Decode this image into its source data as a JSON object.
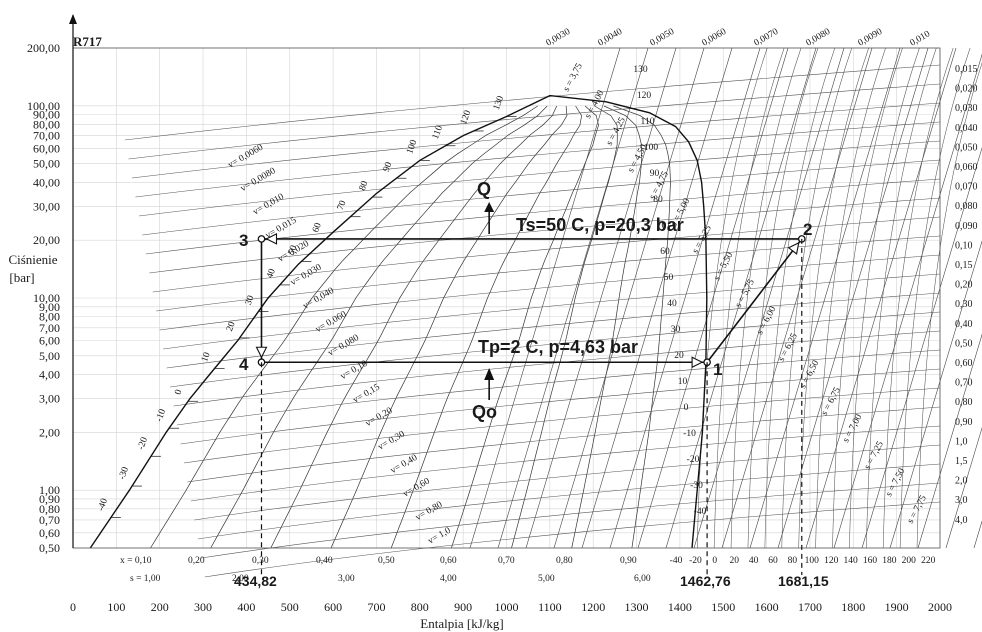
{
  "chart_data": {
    "type": "line",
    "title": "R717",
    "xlabel": "Entalpia [kJ/kg]",
    "ylabel": "Ciśnienie\n[bar]",
    "xlim": [
      0,
      2000
    ],
    "ylim": [
      0.5,
      200
    ],
    "yscale": "log",
    "x_ticks": [
      0,
      100,
      200,
      300,
      400,
      500,
      600,
      700,
      800,
      900,
      1000,
      1100,
      1200,
      1300,
      1400,
      1500,
      1600,
      1700,
      1800,
      1900,
      2000
    ],
    "y_ticks": [
      {
        "v": 200,
        "label": "200,00"
      },
      {
        "v": 100,
        "label": "100,00"
      },
      {
        "v": 90,
        "label": "90,00"
      },
      {
        "v": 80,
        "label": "80,00"
      },
      {
        "v": 70,
        "label": "70,00"
      },
      {
        "v": 60,
        "label": "60,00"
      },
      {
        "v": 50,
        "label": "50,00"
      },
      {
        "v": 40,
        "label": "40,00"
      },
      {
        "v": 30,
        "label": "30,00"
      },
      {
        "v": 20,
        "label": "20,00"
      },
      {
        "v": 10,
        "label": "10,00"
      },
      {
        "v": 9,
        "label": "9,00"
      },
      {
        "v": 8,
        "label": "8,00"
      },
      {
        "v": 7,
        "label": "7,00"
      },
      {
        "v": 6,
        "label": "6,00"
      },
      {
        "v": 5,
        "label": "5,00"
      },
      {
        "v": 4,
        "label": "4,00"
      },
      {
        "v": 3,
        "label": "3,00"
      },
      {
        "v": 2,
        "label": "2,00"
      },
      {
        "v": 1,
        "label": "1,00"
      },
      {
        "v": 0.9,
        "label": "0,90"
      },
      {
        "v": 0.8,
        "label": "0,80"
      },
      {
        "v": 0.7,
        "label": "0,70"
      },
      {
        "v": 0.6,
        "label": "0,60"
      },
      {
        "v": 0.5,
        "label": "0,50"
      }
    ],
    "saturation_dome": {
      "liquid": [
        [
          40,
          0.5
        ],
        [
          130,
          1.0
        ],
        [
          215,
          2.0
        ],
        [
          270,
          3.0
        ],
        [
          315,
          4.0
        ],
        [
          380,
          6.0
        ],
        [
          450,
          10
        ],
        [
          520,
          15
        ],
        [
          600,
          22
        ],
        [
          700,
          35
        ],
        [
          800,
          52
        ],
        [
          900,
          70
        ],
        [
          1000,
          88
        ],
        [
          1100,
          113
        ]
      ],
      "vapor": [
        [
          1100,
          113
        ],
        [
          1230,
          105
        ],
        [
          1330,
          92
        ],
        [
          1390,
          78
        ],
        [
          1420,
          65
        ],
        [
          1440,
          52
        ],
        [
          1450,
          40
        ],
        [
          1455,
          30
        ],
        [
          1460,
          20
        ],
        [
          1462,
          10
        ],
        [
          1460,
          4.63
        ],
        [
          1452,
          2.0
        ],
        [
          1440,
          1.0
        ],
        [
          1428,
          0.5
        ]
      ]
    },
    "quality_labels": [
      "x = 0,10",
      "0,20",
      "0,30",
      "0,40",
      "0,50",
      "0,60",
      "0,70",
      "0,80",
      "0,90"
    ],
    "entropy_labels": [
      "s = 1,00",
      "2,00",
      "3,00",
      "4,00",
      "5,00",
      "6,00"
    ],
    "liquid_temp_labels": [
      "-40",
      "-30",
      "-20",
      "-10",
      "0",
      "10",
      "20",
      "30",
      "40",
      "50",
      "60",
      "70",
      "80",
      "90",
      "100",
      "110",
      "120",
      "130"
    ],
    "vapor_temp_labels": [
      "-40",
      "-30",
      "-20",
      "-10",
      "0",
      "10",
      "20",
      "30",
      "40",
      "50",
      "60",
      "70",
      "80",
      "90",
      "100",
      "110",
      "120",
      "130"
    ],
    "bottom_temp_labels": [
      "-40",
      "-20",
      "0",
      "20",
      "40",
      "60",
      "80",
      "100",
      "120",
      "140",
      "160",
      "180",
      "200",
      "220"
    ],
    "specific_volume_labels_top": [
      "0,0030",
      "0,0040",
      "0,0050",
      "0,0060",
      "0,0070",
      "0,0080",
      "0,0090",
      "0,010"
    ],
    "specific_volume_labels_right": [
      "0,015",
      "0,020",
      "0,030",
      "0,040",
      "0,050",
      "0,060",
      "0,070",
      "0,080",
      "0,090",
      "0,10",
      "0,15",
      "0,20",
      "0,30",
      "0,40",
      "0,50",
      "0,60",
      "0,70",
      "0,80",
      "0,90",
      "1,0",
      "1,5",
      "2,0",
      "3,0",
      "4,0"
    ],
    "specific_volume_labels_inner": [
      "v= 0,0060",
      "v= 0,0080",
      "v= 0,010",
      "v= 0,015",
      "v= 0,020",
      "v= 0,030",
      "v= 0,040",
      "v= 0,060",
      "v= 0,080",
      "v= 0,10",
      "v= 0,15",
      "v= 0,20",
      "v= 0,30",
      "v= 0,40",
      "v= 0,60",
      "v= 0,80",
      "v= 1,0"
    ],
    "isentrope_labels": [
      "s = 3,75",
      "s = 4,00",
      "s = 4,25",
      "s = 4,50",
      "s = 4,75",
      "s = 5,00",
      "s = 5,25",
      "s = 5,50",
      "s = 5,75",
      "s = 6,00",
      "s = 6,25",
      "s = 6,50",
      "s = 6,75",
      "s = 7,00",
      "s = 7,25",
      "s = 7,50",
      "s = 7,75"
    ],
    "cycle": {
      "points": [
        {
          "name": "1",
          "h": 1462.76,
          "p": 4.63
        },
        {
          "name": "2",
          "h": 1681.15,
          "p": 20.3
        },
        {
          "name": "3",
          "h": 434.82,
          "p": 20.3
        },
        {
          "name": "4",
          "h": 434.82,
          "p": 4.63
        }
      ],
      "annotations": {
        "condensation": "Ts=50  C, p=20,3 bar",
        "evaporation": "Tp=2  C, p=4,63 bar",
        "heat_out": "Q",
        "heat_in": "Qo"
      },
      "enthalpy_values": [
        "434,82",
        "1462,76",
        "1681,15"
      ]
    }
  }
}
